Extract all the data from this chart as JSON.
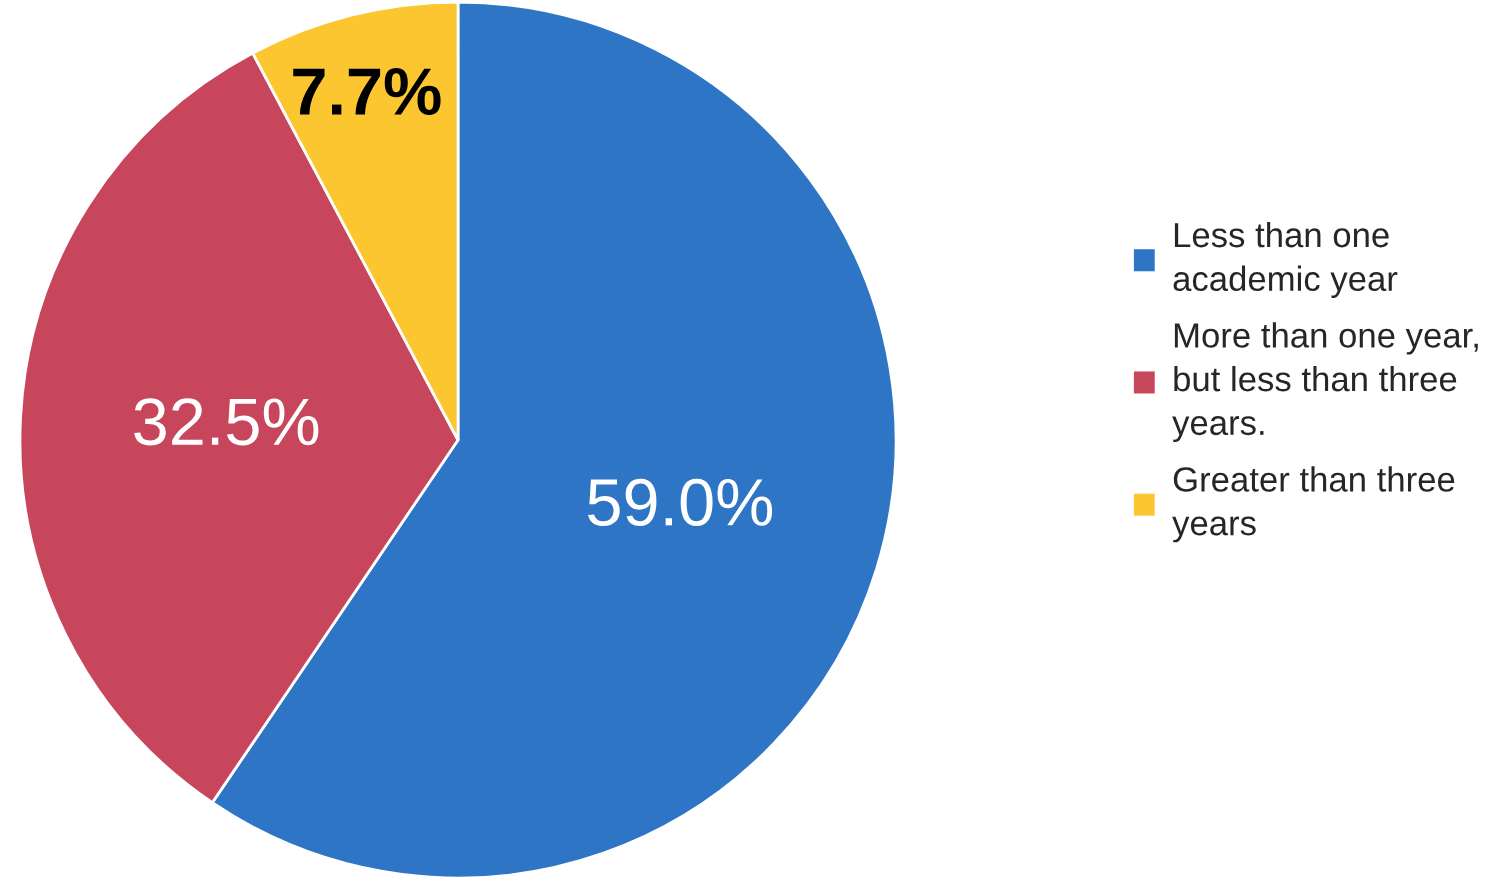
{
  "chart_data": {
    "type": "pie",
    "categories": [
      "Less than one\nacademic year",
      "More than one year,\nbut less than three\nyears.",
      "Greater than three\nyears"
    ],
    "values": [
      59.0,
      32.5,
      7.7
    ],
    "colors": [
      "#2e75c6",
      "#c8465c",
      "#fcc630"
    ],
    "value_labels": [
      "59.0%",
      "32.5%",
      "7.7%"
    ],
    "legend": "right"
  }
}
